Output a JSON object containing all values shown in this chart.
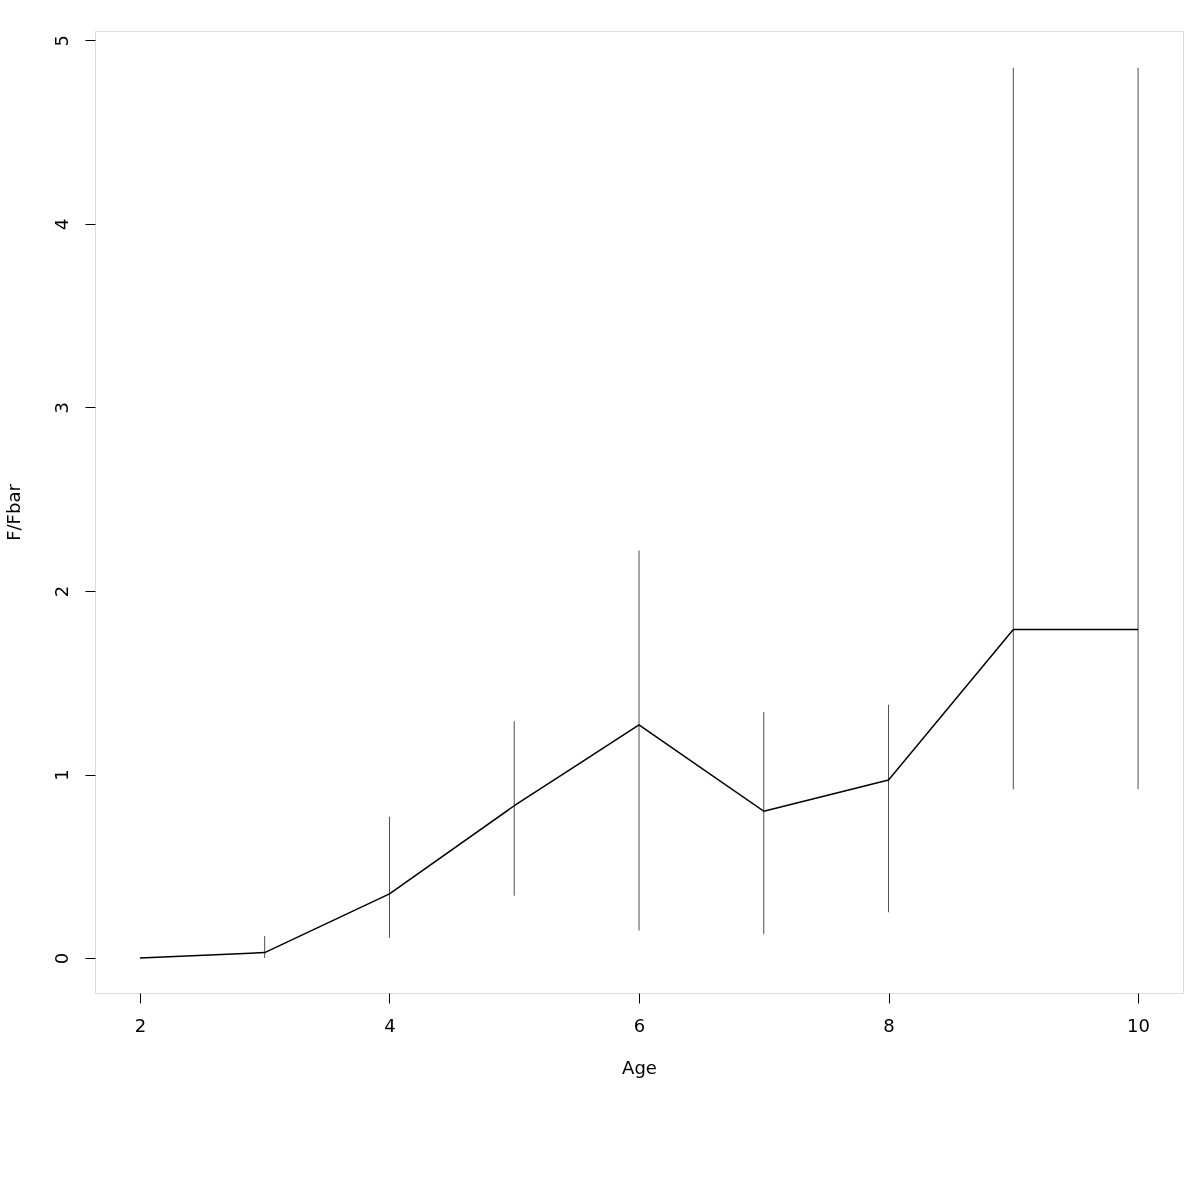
{
  "chart_data": {
    "type": "line",
    "xlabel": "Age",
    "ylabel": "F/Fbar",
    "x": [
      2,
      3,
      4,
      5,
      6,
      7,
      8,
      9,
      10
    ],
    "series": [
      {
        "color": "#000000",
        "values": [
          0,
          0.03,
          0.35,
          0.83,
          1.27,
          0.8,
          0.97,
          1.79,
          1.79
        ],
        "errors": [
          null,
          [
            0,
            0.12
          ],
          [
            0.11,
            0.77
          ],
          [
            0.34,
            1.29
          ],
          [
            0.15,
            2.22
          ],
          [
            0.13,
            1.34
          ],
          [
            0.25,
            1.38
          ],
          [
            0.92,
            4.85
          ],
          [
            0.92,
            4.85
          ]
        ]
      }
    ],
    "xlim": [
      1.68,
      10.32
    ],
    "ylim": [
      -0.19,
      5.05
    ],
    "xticks": [
      2,
      4,
      6,
      8,
      10
    ],
    "yticks": [
      0,
      1,
      2,
      3,
      4,
      5
    ],
    "grid": false,
    "marker": "none",
    "line_style": "solid"
  }
}
